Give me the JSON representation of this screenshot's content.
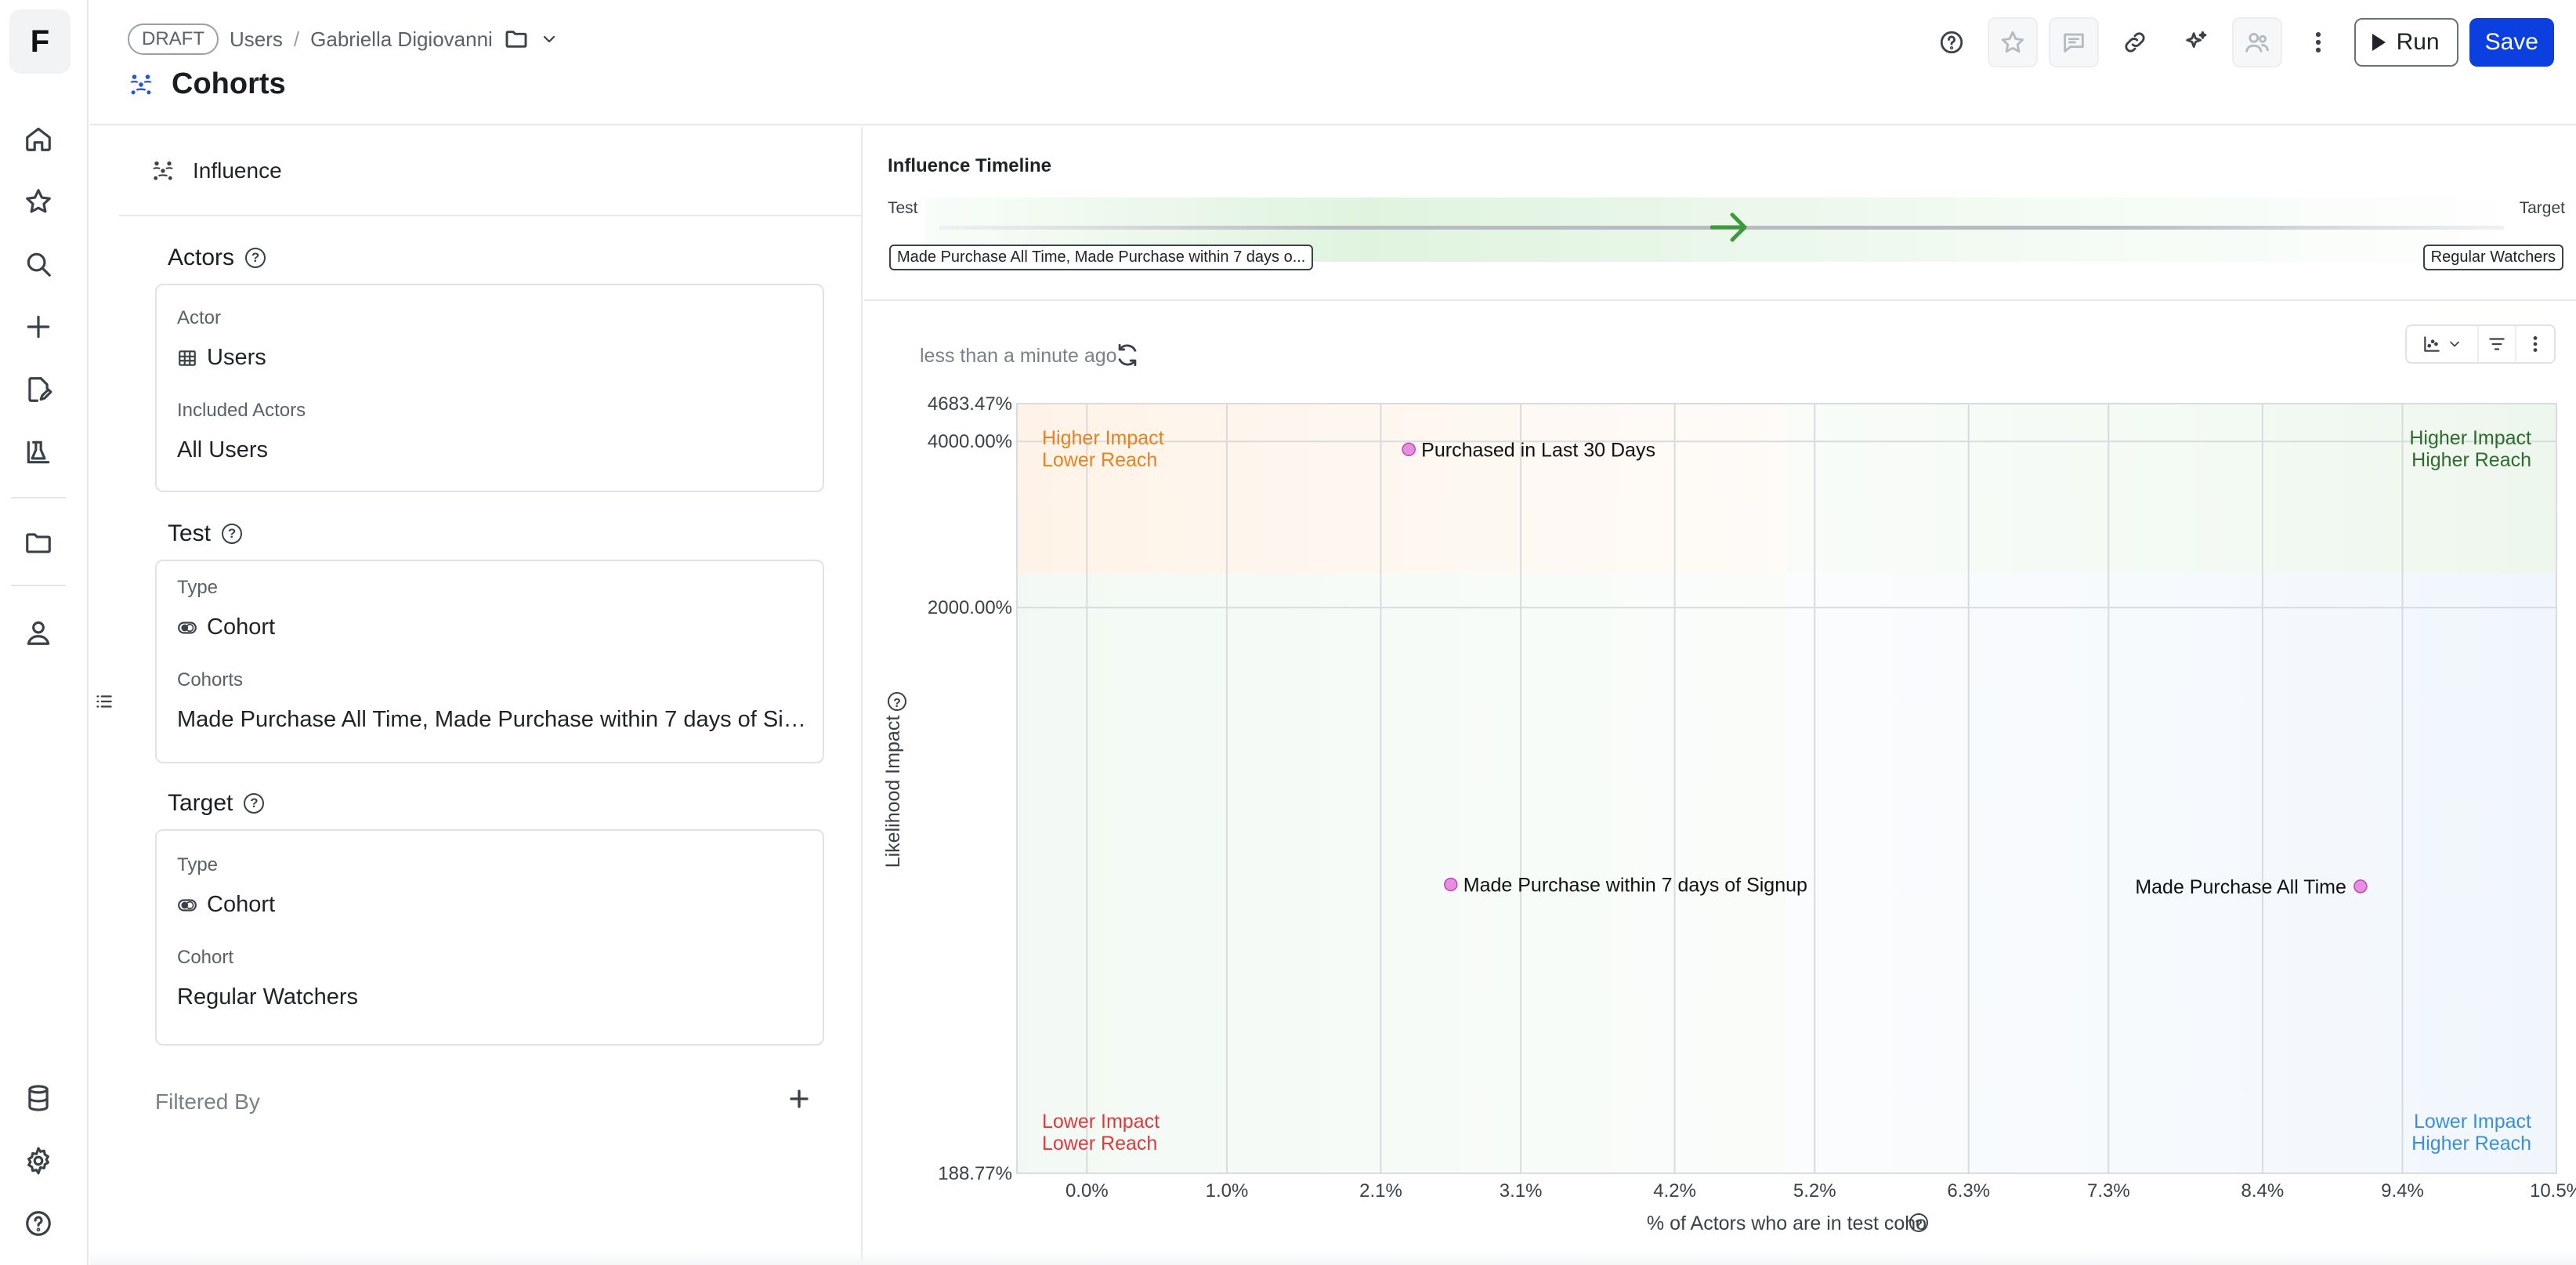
{
  "app": {
    "logo": "F"
  },
  "rail": {
    "items": [
      {
        "name": "home-icon"
      },
      {
        "name": "star-icon"
      },
      {
        "name": "search-icon"
      },
      {
        "name": "plus-icon"
      },
      {
        "name": "edit-document-icon"
      },
      {
        "name": "lab-icon"
      },
      {
        "name": "folder-icon"
      },
      {
        "name": "person-icon"
      }
    ],
    "bottom": [
      {
        "name": "database-icon"
      },
      {
        "name": "gear-icon"
      },
      {
        "name": "help-icon"
      }
    ]
  },
  "header": {
    "badge": "DRAFT",
    "breadcrumb": [
      "Users",
      "Gabriella Digiovanni"
    ],
    "breadcrumb_separator": "/",
    "title": "Cohorts",
    "run_label": "Run",
    "save_label": "Save",
    "save_color": "#0b3fe0"
  },
  "panel": {
    "section": "Influence",
    "actors": {
      "title": "Actors",
      "actor_label": "Actor",
      "actor_value": "Users",
      "included_label": "Included Actors",
      "included_value": "All Users"
    },
    "test": {
      "title": "Test",
      "type_label": "Type",
      "type_value": "Cohort",
      "cohorts_label": "Cohorts",
      "cohorts_value": "Made Purchase All Time, Made Purchase within 7 days of Signup..."
    },
    "target": {
      "title": "Target",
      "type_label": "Type",
      "type_value": "Cohort",
      "cohort_label": "Cohort",
      "cohort_value": "Regular Watchers"
    },
    "filtered_by": "Filtered By"
  },
  "timeline": {
    "title": "Influence Timeline",
    "start_label": "Test",
    "end_label": "Target",
    "test_chip": "Made Purchase All Time, Made Purchase within 7 days o...",
    "target_chip": "Regular Watchers",
    "arrow_color": "#3c9a3c"
  },
  "main": {
    "updated": "less than a minute ago"
  },
  "chart_data": {
    "type": "scatter",
    "xlabel": "% of Actors who are in test coho",
    "ylabel": "Likelihood Impact",
    "x_ticks": [
      "0.0%",
      "1.0%",
      "2.1%",
      "3.1%",
      "4.2%",
      "5.2%",
      "6.3%",
      "7.3%",
      "8.4%",
      "9.4%",
      "10.5%"
    ],
    "x_tick_values": [
      0.0,
      1.0,
      2.1,
      3.1,
      4.2,
      5.2,
      6.3,
      7.3,
      8.4,
      9.4,
      10.5
    ],
    "y_ticks": [
      "4683.47%",
      "4000.00%",
      "2000.00%",
      "188.77%"
    ],
    "y_tick_values": [
      4683.47,
      4000,
      2000,
      188.77
    ],
    "xlim": [
      -0.5,
      10.5
    ],
    "ylim": [
      188.77,
      4683.47
    ],
    "y_scale": "log",
    "grid": true,
    "quadrants": {
      "top_left": [
        "Higher Impact",
        "Lower Reach"
      ],
      "top_right": [
        "Higher Impact",
        "Higher Reach"
      ],
      "bottom_left": [
        "Lower Impact",
        "Lower Reach"
      ],
      "bottom_right": [
        "Lower Impact",
        "Higher Reach"
      ]
    },
    "quadrant_colors": {
      "top_left": "#e8821e",
      "top_right": "#2e6b2e",
      "bottom_left": "#e0393e",
      "bottom_right": "#3b8fd9"
    },
    "points": [
      {
        "label": "Purchased in Last 30 Days",
        "x": 2.3,
        "y": 3870
      },
      {
        "label": "Made Purchase within 7 days of Signup",
        "x": 2.6,
        "y": 630
      },
      {
        "label": "Made Purchase All Time",
        "x": 9.1,
        "y": 625
      }
    ],
    "point_color": "#e98de0"
  }
}
